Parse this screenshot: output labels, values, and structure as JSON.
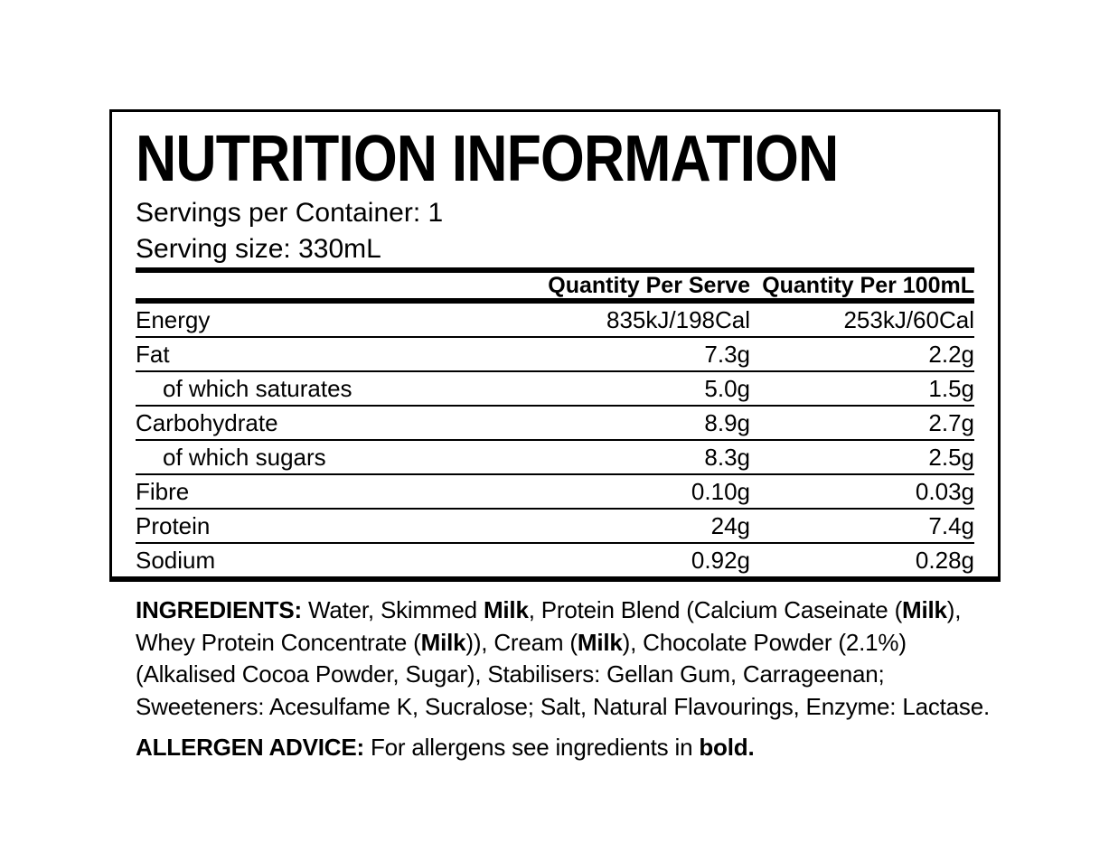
{
  "colors": {
    "foreground": "#000000",
    "background": "#ffffff"
  },
  "label": {
    "title": "NUTRITION INFORMATION",
    "servings_per_container": "Servings per Container: 1",
    "serving_size": "Serving size: 330mL",
    "table": {
      "columns": [
        "",
        "Quantity Per Serve",
        "Quantity Per 100mL"
      ],
      "rows": [
        {
          "name": "Energy",
          "per_serve": "835kJ/198Cal",
          "per_100ml": "253kJ/60Cal",
          "indent": false
        },
        {
          "name": "Fat",
          "per_serve": "7.3g",
          "per_100ml": "2.2g",
          "indent": false
        },
        {
          "name": "of which saturates",
          "per_serve": "5.0g",
          "per_100ml": "1.5g",
          "indent": true
        },
        {
          "name": "Carbohydrate",
          "per_serve": "8.9g",
          "per_100ml": "2.7g",
          "indent": false
        },
        {
          "name": "of which sugars",
          "per_serve": "8.3g",
          "per_100ml": "2.5g",
          "indent": true
        },
        {
          "name": "Fibre",
          "per_serve": "0.10g",
          "per_100ml": "0.03g",
          "indent": false
        },
        {
          "name": "Protein",
          "per_serve": "24g",
          "per_100ml": "7.4g",
          "indent": false
        },
        {
          "name": "Sodium",
          "per_serve": "0.92g",
          "per_100ml": "0.28g",
          "indent": false
        }
      ]
    }
  },
  "ingredients": {
    "lines": [
      [
        {
          "text": "INGREDIENTS: ",
          "bold": true
        },
        {
          "text": "Water, Skimmed ",
          "bold": false
        },
        {
          "text": "Milk",
          "bold": true
        },
        {
          "text": ", Protein Blend (Calcium Caseinate (",
          "bold": false
        },
        {
          "text": "Milk",
          "bold": true
        },
        {
          "text": "),",
          "bold": false
        }
      ],
      [
        {
          "text": "Whey Protein Concentrate (",
          "bold": false
        },
        {
          "text": "Milk",
          "bold": true
        },
        {
          "text": ")), Cream (",
          "bold": false
        },
        {
          "text": "Milk",
          "bold": true
        },
        {
          "text": "), Chocolate Powder (2.1%)",
          "bold": false
        }
      ],
      [
        {
          "text": "(Alkalised Cocoa Powder, Sugar), Stabilisers: Gellan Gum, Carrageenan;",
          "bold": false
        }
      ],
      [
        {
          "text": "Sweeteners: Acesulfame K, Sucralose; Salt, Natural Flavourings, Enzyme: Lactase.",
          "bold": false
        }
      ]
    ]
  },
  "allergen": {
    "segments": [
      {
        "text": "ALLERGEN ADVICE: ",
        "bold": true
      },
      {
        "text": "For allergens see ingredients in ",
        "bold": false
      },
      {
        "text": "bold.",
        "bold": true
      }
    ]
  }
}
